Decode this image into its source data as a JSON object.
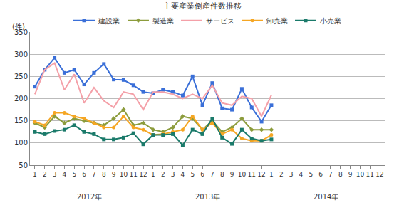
{
  "chart_data": {
    "type": "line",
    "title": "主要産業倒産件数推移",
    "ylabel": "(件)",
    "categories": [
      "1",
      "2",
      "3",
      "4",
      "5",
      "6",
      "7",
      "8",
      "9",
      "10",
      "11",
      "12",
      "1",
      "2",
      "3",
      "4",
      "5",
      "6",
      "7",
      "8",
      "9",
      "10",
      "11",
      "12",
      "1",
      "2",
      "3",
      "4",
      "5",
      "6",
      "7",
      "8",
      "9",
      "10",
      "11",
      "12"
    ],
    "annotations": [
      "2012年",
      "2013年",
      "2014年"
    ],
    "series": [
      {
        "name": "建設業",
        "color": "#3a6fd8",
        "marker": "square",
        "line_style": "solid",
        "values": [
          227,
          265,
          292,
          258,
          265,
          232,
          258,
          278,
          243,
          242,
          230,
          215,
          212,
          220,
          215,
          207,
          250,
          185,
          235,
          178,
          175,
          222,
          180,
          148,
          185,
          null,
          null,
          null,
          null,
          null,
          null,
          null,
          null,
          null,
          null,
          null
        ]
      },
      {
        "name": "製造業",
        "color": "#8c9c3c",
        "marker": "diamond",
        "line_style": "solid",
        "values": [
          145,
          135,
          160,
          145,
          155,
          150,
          145,
          140,
          155,
          175,
          140,
          145,
          130,
          125,
          135,
          160,
          155,
          130,
          150,
          125,
          135,
          155,
          130,
          130,
          130,
          null,
          null,
          null,
          null,
          null,
          null,
          null,
          null,
          null,
          null,
          null
        ]
      },
      {
        "name": "サービス",
        "color": "#f4a0a8",
        "marker": "none",
        "line_style": "solid",
        "values": [
          210,
          265,
          280,
          220,
          255,
          190,
          225,
          195,
          180,
          215,
          210,
          175,
          215,
          215,
          210,
          200,
          210,
          200,
          230,
          190,
          185,
          205,
          200,
          160,
          208,
          null,
          null,
          null,
          null,
          null,
          null,
          null,
          null,
          null,
          null,
          null
        ]
      },
      {
        "name": "卸売業",
        "color": "#f5a623",
        "marker": "circle",
        "line_style": "solid",
        "values": [
          148,
          140,
          168,
          168,
          160,
          155,
          145,
          135,
          135,
          160,
          135,
          130,
          118,
          120,
          125,
          130,
          160,
          130,
          145,
          120,
          130,
          110,
          105,
          105,
          118,
          null,
          null,
          null,
          null,
          null,
          null,
          null,
          null,
          null,
          null,
          null
        ]
      },
      {
        "name": "小売業",
        "color": "#1a7a6a",
        "marker": "square",
        "line_style": "solid",
        "values": [
          125,
          120,
          127,
          130,
          140,
          125,
          120,
          108,
          108,
          112,
          122,
          97,
          118,
          118,
          120,
          95,
          130,
          120,
          155,
          112,
          98,
          130,
          110,
          105,
          108,
          null,
          null,
          null,
          null,
          null,
          null,
          null,
          null,
          null,
          null,
          null
        ]
      }
    ],
    "ylim": [
      50,
      350
    ],
    "yticks": [
      50,
      100,
      150,
      200,
      250,
      300,
      350
    ],
    "grid": true,
    "legend": "top"
  }
}
